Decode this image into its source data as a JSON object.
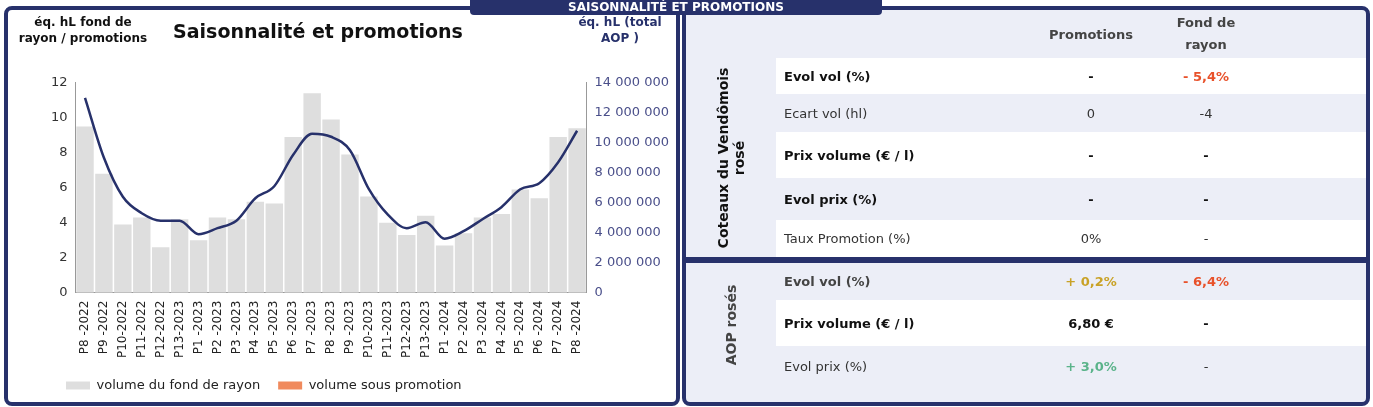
{
  "chart_data": [
    {
      "type": "bar",
      "title": "Saisonnalité et promotions",
      "ylabel": "éq. hL fond de rayon / promotions",
      "y2label": "éq. hL (total AOP )",
      "categories": [
        "P8 -2022",
        "P9 -2022",
        "P10-2022",
        "P11-2022",
        "P12-2022",
        "P13-2023",
        "P1 -2023",
        "P2 -2023",
        "P3 -2023",
        "P4 -2023",
        "P5 -2023",
        "P6 -2023",
        "P7 -2023",
        "P8 -2023",
        "P9 -2023",
        "P10-2023",
        "P11-2023",
        "P12-2023",
        "P13-2023",
        "P1 -2024",
        "P2 -2024",
        "P3 -2024",
        "P4 -2024",
        "P5 -2024",
        "P6 -2024",
        "P7 -2024",
        "P8 -2024"
      ],
      "stacked": true,
      "series": [
        {
          "name": "volume du fond de rayon",
          "color": "#dedede",
          "values": [
            9.5,
            6.8,
            3.9,
            4.3,
            2.6,
            4.2,
            3.0,
            4.3,
            4.2,
            5.2,
            5.1,
            8.9,
            11.4,
            9.9,
            7.9,
            5.5,
            4.0,
            3.3,
            4.4,
            2.7,
            3.4,
            4.3,
            4.5,
            5.9,
            5.4,
            8.9,
            9.4
          ]
        },
        {
          "name": "volume sous promotion",
          "color": "#f08a5d",
          "values": [
            0,
            0,
            0,
            0,
            0,
            0,
            0,
            0,
            0,
            0,
            0,
            0,
            0,
            0,
            0,
            0,
            0,
            0,
            0,
            0,
            0,
            0,
            0,
            0,
            0,
            0,
            0
          ]
        },
        {
          "type": "line",
          "axis": "y2",
          "color": "#27316b",
          "values": [
            13000000,
            9000000,
            6400000,
            5300000,
            4800000,
            4800000,
            3900000,
            4300000,
            4800000,
            6300000,
            7100000,
            9200000,
            10600000,
            10400000,
            9500000,
            6900000,
            5200000,
            4300000,
            4700000,
            3600000,
            4100000,
            4900000,
            5700000,
            6900000,
            7300000,
            8700000,
            10800000
          ]
        }
      ],
      "ylim": [
        0,
        12
      ],
      "yticks": [
        0,
        2,
        4,
        6,
        8,
        10,
        12
      ],
      "y2lim": [
        0,
        14000000
      ],
      "y2ticks": [
        0,
        2000000,
        4000000,
        6000000,
        8000000,
        10000000,
        12000000,
        14000000
      ],
      "legend": "bottom",
      "grid": false,
      "marker": "none"
    },
    {
      "type": "other",
      "title": "SAISONNALITÉ ET PROMOTIONS",
      "annotations": [
        "Promotions",
        "Fond de rayon",
        "Coteaux du Vendômois rosé",
        "Evol vol (%)",
        "-",
        "- 5,4%",
        "Ecart vol (hl)",
        "0",
        "-4",
        "Prix volume (€ / l)",
        "-",
        "-",
        "Evol prix (%)",
        "-",
        "-",
        "Taux Promotion (%)",
        "0%",
        "-",
        "AOP rosés",
        "Evol vol (%)",
        "+ 0,2%",
        "- 6,4%",
        "Prix volume (€ / l)",
        "6,80 €",
        "-",
        "Evol prix (%)",
        "+ 3,0%",
        "-"
      ]
    }
  ]
}
